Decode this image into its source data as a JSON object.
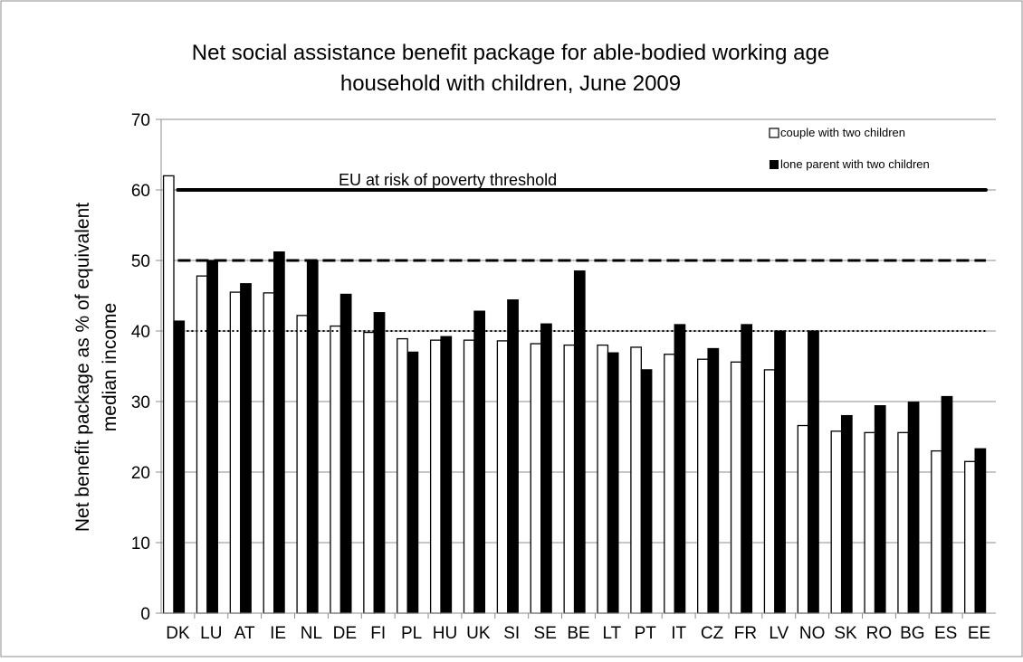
{
  "chart_data": {
    "type": "bar",
    "title_line1": "Net social assistance benefit package for able-bodied working age",
    "title_line2": "household with children, June 2009",
    "ylabel_line1": "Net benefit package as % of equivalent",
    "ylabel_line2": "median income",
    "ylim": [
      0,
      70
    ],
    "yticks": [
      0,
      10,
      20,
      30,
      40,
      50,
      60,
      70
    ],
    "categories": [
      "DK",
      "LU",
      "AT",
      "IE",
      "NL",
      "DE",
      "FI",
      "PL",
      "HU",
      "UK",
      "SI",
      "SE",
      "BE",
      "LT",
      "PT",
      "IT",
      "CZ",
      "FR",
      "LV",
      "NO",
      "SK",
      "RO",
      "BG",
      "ES",
      "EE"
    ],
    "series": [
      {
        "name": "couple with two children",
        "color": "#ffffff",
        "values": [
          62,
          47.8,
          45.5,
          45.4,
          42.2,
          40.7,
          39.8,
          38.9,
          38.7,
          38.7,
          38.6,
          38.2,
          38.0,
          38.0,
          37.7,
          36.7,
          36.0,
          35.6,
          34.5,
          26.6,
          25.8,
          25.6,
          25.6,
          23.0,
          21.5
        ]
      },
      {
        "name": "lone parent with two children",
        "color": "#000000",
        "values": [
          41.4,
          50.0,
          46.7,
          51.2,
          50.0,
          45.2,
          42.6,
          37.0,
          39.2,
          42.8,
          44.4,
          41.0,
          48.5,
          36.9,
          34.5,
          40.9,
          37.5,
          40.9,
          40.0,
          40.0,
          28.0,
          29.4,
          29.9,
          30.7,
          23.3
        ]
      }
    ],
    "reference_lines": [
      {
        "value": 60,
        "style": "solid",
        "label": "EU at risk of poverty threshold"
      },
      {
        "value": 50,
        "style": "dashed"
      },
      {
        "value": 40,
        "style": "dotted"
      }
    ],
    "grid": true,
    "legend_position": "top-right"
  }
}
